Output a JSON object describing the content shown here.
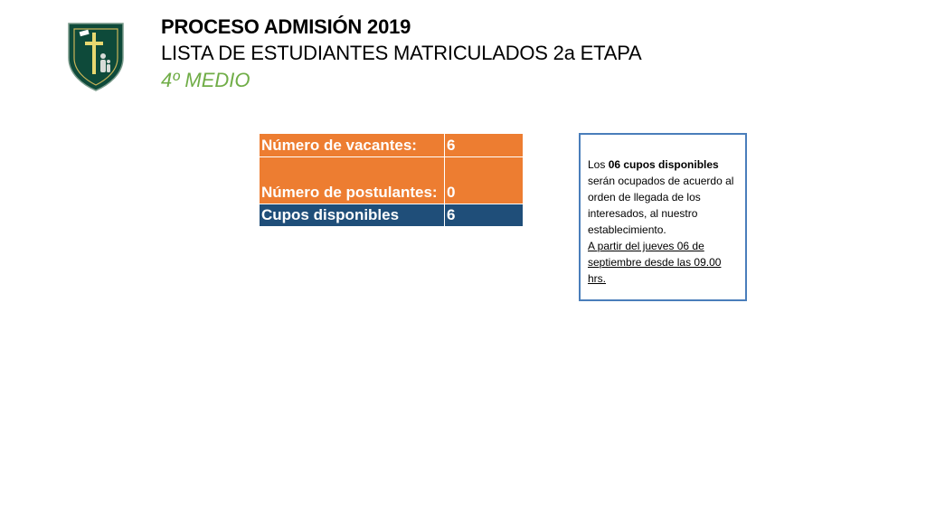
{
  "header": {
    "title": "PROCESO ADMISIÓN 2019",
    "subtitle": "LISTA DE ESTUDIANTES MATRICULADOS 2a ETAPA",
    "level": "4º MEDIO"
  },
  "colors": {
    "orange": "#ed7d31",
    "navy": "#1f4e79",
    "green": "#70ad47",
    "shield": "#0e4a3a",
    "border_blue": "#4a7ebb"
  },
  "logo": {
    "icon": "school-shield-cross-icon"
  },
  "stats_table": {
    "rows": [
      {
        "label": "Número de vacantes:",
        "value": "6"
      },
      {
        "label": "Número de postulantes:",
        "value": "0"
      },
      {
        "label": "Cupos disponibles",
        "value": "6"
      }
    ]
  },
  "note": {
    "pre": "Los ",
    "bold": "06 cupos disponibles",
    "post": " serán ocupados de acuerdo al orden de llegada de los interesados, al nuestro establecimiento.",
    "underlined": "A partir del jueves 06 de septiembre desde las 09.00 hrs."
  }
}
